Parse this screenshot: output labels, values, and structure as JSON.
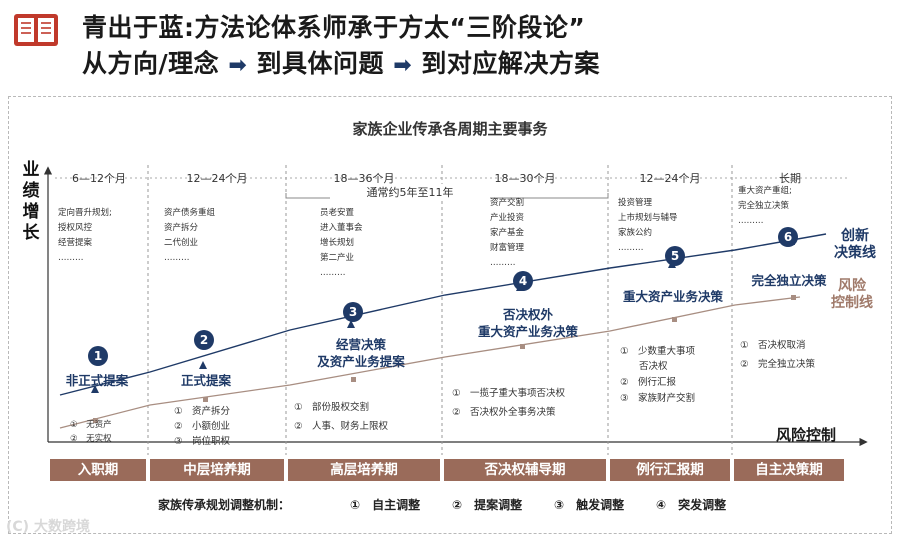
{
  "header": {
    "line1": "青出于蓝:方法论体系师承于方太“三阶段论”",
    "line2_parts": [
      "从方向/理念",
      "到具体问题",
      "到对应解决方案"
    ],
    "arrow_color": "#1f3a67",
    "icon": "book-icon"
  },
  "diagram": {
    "title": "家族企业传承各周期主要事务",
    "y_axis_label": [
      "业",
      "绩",
      "增",
      "长"
    ],
    "x_axis_label": "风险控制",
    "span_note": "通常约5年至11年",
    "periods": [
      "6—12个月",
      "12—24个月",
      "18—36个月",
      "18—30个月",
      "12—24个月",
      "长期"
    ],
    "phase_items": [
      [
        "定向晋升规划;",
        "授权风控",
        "经营提案",
        "………"
      ],
      [
        "资产债务重组",
        "资产拆分",
        "二代创业",
        "………"
      ],
      [
        "员老安置",
        "进入董事会",
        "增长规划",
        "第二产业",
        "………"
      ],
      [
        "资产交割",
        "产业投资",
        "家产基金",
        "财富管理",
        "………"
      ],
      [
        "投资管理",
        "上市规划与辅导",
        "家族公约",
        "………"
      ],
      [
        "重大资产重组;",
        "完全独立决策",
        "………"
      ]
    ],
    "milestones": [
      {
        "num": "1",
        "label": "非正式提案"
      },
      {
        "num": "2",
        "label": "正式提案"
      },
      {
        "num": "3",
        "label": "经营决策\n及资产业务提案"
      },
      {
        "num": "4",
        "label": "否决权外\n重大资产业务决策"
      },
      {
        "num": "5",
        "label": "重大资产业务决策"
      },
      {
        "num": "6",
        "label": "完全独立决策"
      }
    ],
    "line_labels": {
      "innovation": "创新\n决策线",
      "risk": "风险\n控制线"
    },
    "lower_items": [
      [
        "①　无资产",
        "②　无实权"
      ],
      [
        "①　资产拆分",
        "②　小额创业",
        "③　岗位职权"
      ],
      [
        "①　部份股权交割",
        "②　人事、财务上限权"
      ],
      [
        "①　一揽子重大事项否决权",
        "②　否决权外全事务决策"
      ],
      [
        "①　少数重大事项\n　　否决权",
        "②　例行汇报",
        "③　家族财产交割"
      ],
      [
        "①　否决权取消",
        "②　完全独立决策"
      ]
    ],
    "phases": [
      "入职期",
      "中层培养期",
      "高层培养期",
      "否决权辅导期",
      "例行汇报期",
      "自主决策期"
    ],
    "mechanism": {
      "title": "家族传承规划调整机制：",
      "items": [
        "①　自主调整",
        "②　提案调整",
        "③　触发调整",
        "④　突发调整"
      ]
    },
    "colors": {
      "navy": "#1f3a67",
      "brown": "#9a6b5a",
      "risk_text": "#a07a6a",
      "book": "#c0392b"
    }
  },
  "watermark": "(C) 大数跨境"
}
